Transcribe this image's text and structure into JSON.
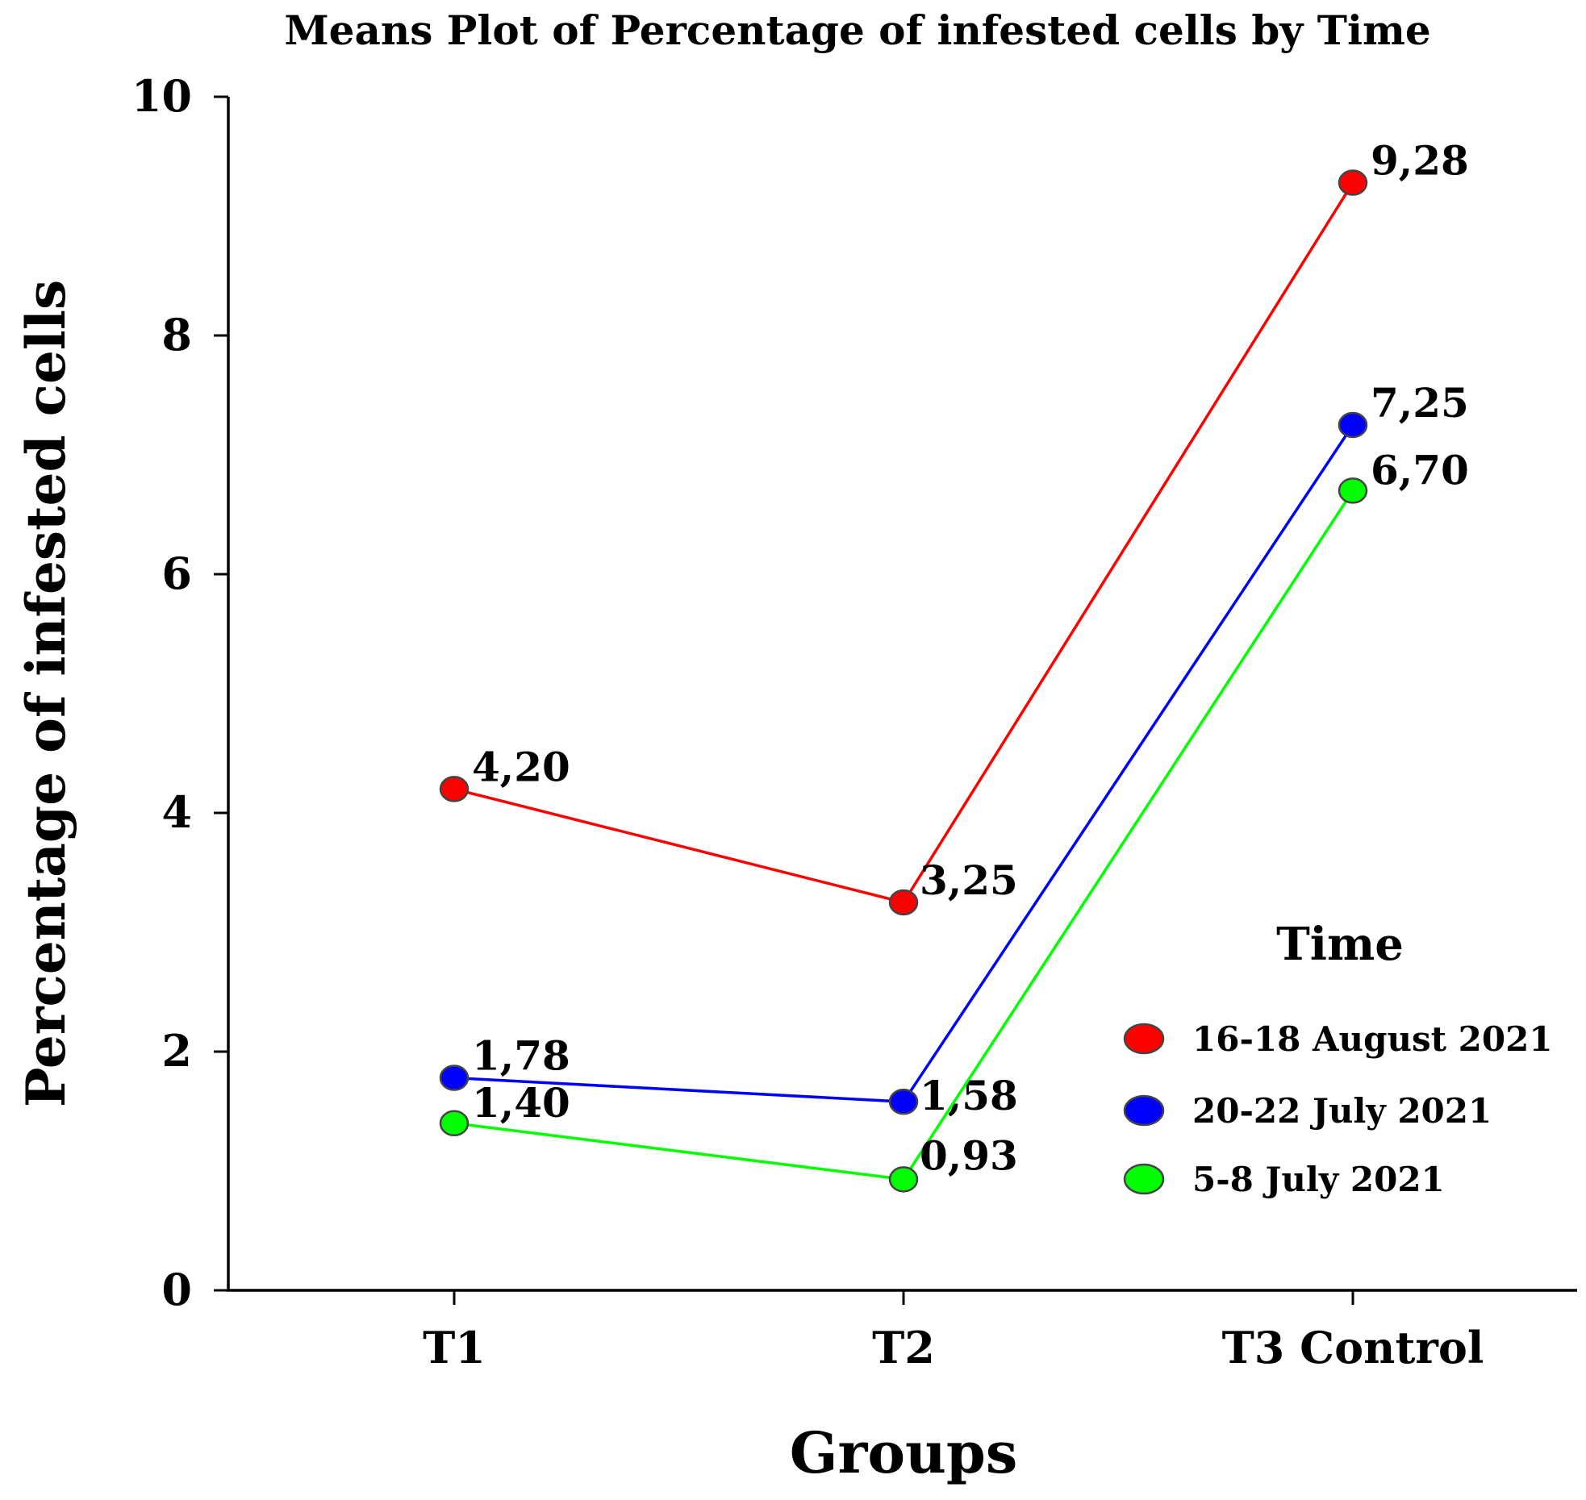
{
  "chart_data": {
    "type": "line",
    "title": "Means Plot of Percentage of infested cells by Time",
    "xlabel": "Groups",
    "ylabel": "Percentage of infested cells",
    "categories": [
      "T1",
      "T2",
      "T3 Control"
    ],
    "ylim": [
      0,
      10
    ],
    "yticks": [
      0,
      2,
      4,
      6,
      8,
      10
    ],
    "ytick_labels": [
      "0",
      "2",
      "4",
      "6",
      "8",
      "10"
    ],
    "grid": false,
    "legend_title": "Time",
    "legend_position": "right",
    "series": [
      {
        "name": "16-18 August 2021",
        "color": "#ff0000",
        "values": [
          4.2,
          3.25,
          9.28
        ],
        "labels": [
          "4,20",
          "3,25",
          "9,28"
        ]
      },
      {
        "name": "20-22 July 2021",
        "color": "#0000ff",
        "values": [
          1.78,
          1.58,
          7.25
        ],
        "labels": [
          "1,78",
          "1,58",
          "7,25"
        ]
      },
      {
        "name": "5-8 July 2021",
        "color": "#00ff00",
        "values": [
          1.4,
          0.93,
          6.7
        ],
        "labels": [
          "1,40",
          "0,93",
          "6,70"
        ]
      }
    ]
  }
}
